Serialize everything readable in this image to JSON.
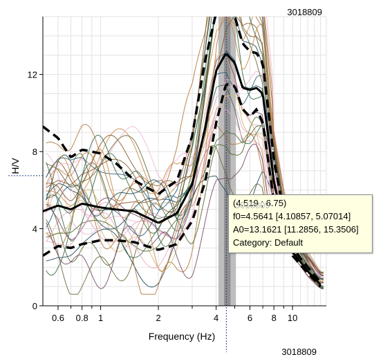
{
  "header": {
    "station_id": "3018809",
    "station_id_bottom": "3018809"
  },
  "tooltip": {
    "coords": "(4.519 ; 6.75)",
    "ghost": "3018809",
    "f0": "f0=4.5641 [4.10857, 5.07014]",
    "a0": "A0=13.1621 [11.2856, 15.3506]",
    "category": "Category: Default"
  },
  "chart_data": {
    "type": "line",
    "xlabel": "Frequency (Hz)",
    "ylabel": "H/V",
    "xscale": "log",
    "xlim": [
      0.5,
      15
    ],
    "ylim": [
      0,
      15
    ],
    "grid": true,
    "x_ticks": [
      {
        "v": 0.6,
        "label": "0.6"
      },
      {
        "v": 0.7,
        "label": ""
      },
      {
        "v": 0.8,
        "label": "0.8"
      },
      {
        "v": 0.9,
        "label": ""
      },
      {
        "v": 1,
        "label": "1"
      },
      {
        "v": 2,
        "label": "2"
      },
      {
        "v": 3,
        "label": ""
      },
      {
        "v": 4,
        "label": "4"
      },
      {
        "v": 5,
        "label": ""
      },
      {
        "v": 6,
        "label": "6"
      },
      {
        "v": 7,
        "label": ""
      },
      {
        "v": 8,
        "label": "8"
      },
      {
        "v": 9,
        "label": ""
      },
      {
        "v": 10,
        "label": "10"
      }
    ],
    "y_ticks": [
      {
        "v": 0,
        "label": "0"
      },
      {
        "v": 4,
        "label": "4"
      },
      {
        "v": 8,
        "label": "8"
      },
      {
        "v": 12,
        "label": "12"
      }
    ],
    "f0_band": {
      "min": 4.10857,
      "max": 5.07014
    },
    "f0_center_band": {
      "min": 4.4,
      "max": 4.75
    },
    "cursor": {
      "x": 4.519,
      "y": 6.75
    },
    "series": [
      {
        "role": "mean",
        "x": [
          0.5,
          0.6,
          0.7,
          0.8,
          1.0,
          1.2,
          1.5,
          2.0,
          2.5,
          3.0,
          3.5,
          4.0,
          4.5,
          5.0,
          5.5,
          6.0,
          6.5,
          7.0,
          8.0,
          9.0,
          10.0,
          12.0,
          14.0
        ],
        "values": [
          4.9,
          5.2,
          5.0,
          5.3,
          5.1,
          5.0,
          4.9,
          4.3,
          4.8,
          6.3,
          9.2,
          12.2,
          13.1,
          12.6,
          11.3,
          11.2,
          11.3,
          11.0,
          6.4,
          4.2,
          2.8,
          1.8,
          1.1
        ]
      },
      {
        "role": "mean-plus-std",
        "x": [
          0.5,
          0.6,
          0.7,
          0.8,
          1.0,
          1.2,
          1.5,
          2.0,
          2.5,
          3.0,
          3.5,
          4.0,
          4.5,
          5.0,
          5.5,
          6.0,
          6.5,
          7.0,
          8.0,
          9.0,
          10.0,
          12.0,
          14.0
        ],
        "values": [
          9.3,
          8.7,
          7.7,
          8.1,
          7.9,
          7.4,
          6.5,
          5.8,
          6.5,
          8.8,
          12.7,
          15.2,
          15.6,
          15.0,
          13.6,
          13.2,
          13.1,
          12.6,
          7.6,
          4.8,
          3.0,
          2.0,
          1.2
        ]
      },
      {
        "role": "mean-minus-std",
        "x": [
          0.5,
          0.6,
          0.7,
          0.8,
          1.0,
          1.2,
          1.5,
          2.0,
          2.5,
          3.0,
          3.5,
          4.0,
          4.5,
          5.0,
          5.5,
          6.0,
          6.5,
          7.0,
          8.0,
          9.0,
          10.0,
          12.0,
          14.0
        ],
        "values": [
          2.6,
          3.1,
          3.0,
          3.2,
          3.4,
          3.4,
          3.3,
          2.9,
          3.2,
          4.4,
          6.4,
          9.5,
          11.5,
          11.4,
          10.2,
          9.8,
          10.2,
          9.5,
          5.4,
          3.8,
          2.6,
          1.7,
          1.0
        ]
      }
    ],
    "window_curve_count": 30
  }
}
